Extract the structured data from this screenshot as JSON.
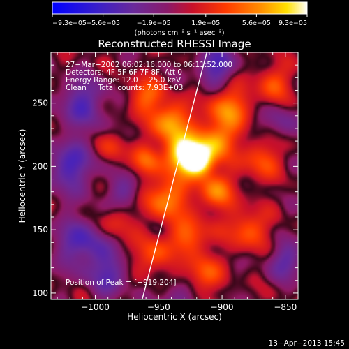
{
  "chart_data": {
    "type": "heatmap",
    "title": "Reconstructed RHESSI Image",
    "xlabel": "Heliocentric X (arcsec)",
    "ylabel": "Heliocentric Y (arcsec)",
    "xlim": [
      -1035,
      -840
    ],
    "ylim": [
      95,
      290
    ],
    "x_ticks": [
      -1000,
      -950,
      -900,
      -850
    ],
    "x_tick_labels": [
      "−1000",
      "−950",
      "−900",
      "−850"
    ],
    "y_ticks": [
      100,
      150,
      200,
      250
    ],
    "y_tick_labels": [
      "100",
      "150",
      "200",
      "250"
    ],
    "colorbar": {
      "colormap": "blue-purple-red-yellow-white",
      "range": [
        -9.3e-05,
        9.3e-05
      ],
      "ticks": [
        -9.3e-05,
        -5.6e-05,
        -1.9e-05,
        1.9e-05,
        5.6e-05,
        9.3e-05
      ],
      "tick_labels": [
        "−9.3e−05",
        "−5.6e−05",
        "−1.9e−05",
        "1.9e−05",
        "5.6e−05",
        "9.3e−05"
      ],
      "units": "(photons cm⁻² s⁻¹ asec⁻²)"
    },
    "info_lines": [
      "27−Mar−2002 06:02:16.000 to 06:11:52.000",
      "Detectors: 4F 5F 6F 7F 8F, Att 0",
      "Energy Range: 12.0 − 25.0 keV",
      "Clean     Total counts: 7.93E+03"
    ],
    "peak_label": "Position of Peak = [−919,204]",
    "peak": [
      -919,
      204
    ],
    "limb_line": [
      [
        -963,
        95
      ],
      [
        -912,
        290
      ]
    ],
    "blobs": [
      {
        "x": -930,
        "y": 210,
        "amp": 1.0,
        "s": 11
      },
      {
        "x": -918,
        "y": 204,
        "amp": 0.95,
        "s": 8
      },
      {
        "x": -940,
        "y": 235,
        "amp": 0.7,
        "s": 10
      },
      {
        "x": -905,
        "y": 220,
        "amp": 0.65,
        "s": 10
      },
      {
        "x": -895,
        "y": 245,
        "amp": 0.6,
        "s": 11
      },
      {
        "x": -905,
        "y": 180,
        "amp": 0.55,
        "s": 10
      },
      {
        "x": -945,
        "y": 175,
        "amp": 0.6,
        "s": 12
      },
      {
        "x": -925,
        "y": 145,
        "amp": 0.5,
        "s": 10
      },
      {
        "x": -955,
        "y": 130,
        "amp": 0.45,
        "s": 10
      },
      {
        "x": -915,
        "y": 115,
        "amp": 0.45,
        "s": 10
      },
      {
        "x": -880,
        "y": 150,
        "amp": 0.45,
        "s": 11
      },
      {
        "x": -870,
        "y": 205,
        "amp": 0.4,
        "s": 11
      },
      {
        "x": -860,
        "y": 265,
        "amp": 0.4,
        "s": 10
      },
      {
        "x": -960,
        "y": 255,
        "amp": 0.45,
        "s": 10
      },
      {
        "x": -960,
        "y": 205,
        "amp": 0.4,
        "s": 8
      },
      {
        "x": -985,
        "y": 215,
        "amp": 0.3,
        "s": 8
      },
      {
        "x": -985,
        "y": 155,
        "amp": 0.3,
        "s": 9
      },
      {
        "x": -1010,
        "y": 250,
        "amp": -0.45,
        "s": 14
      },
      {
        "x": -1020,
        "y": 200,
        "amp": -0.5,
        "s": 14
      },
      {
        "x": -1010,
        "y": 140,
        "amp": -0.5,
        "s": 14
      },
      {
        "x": -990,
        "y": 115,
        "amp": -0.4,
        "s": 12
      },
      {
        "x": -975,
        "y": 180,
        "amp": -0.35,
        "s": 9
      },
      {
        "x": -905,
        "y": 280,
        "amp": -0.55,
        "s": 10
      },
      {
        "x": -850,
        "y": 125,
        "amp": -0.4,
        "s": 10
      },
      {
        "x": -855,
        "y": 235,
        "amp": -0.3,
        "s": 9
      },
      {
        "x": -935,
        "y": 95,
        "amp": -0.3,
        "s": 10
      }
    ]
  },
  "footer": {
    "timestamp": "13−Apr−2013 15:45"
  }
}
